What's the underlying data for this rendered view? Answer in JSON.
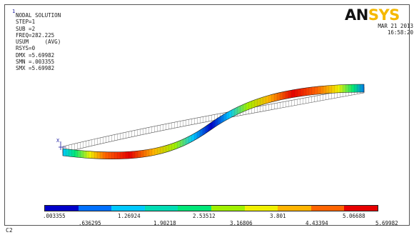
{
  "window": {
    "number": "1",
    "corner_label": "C2"
  },
  "logo": {
    "prefix": "AN",
    "suffix": "SYS"
  },
  "header": {
    "date": "MAR 21 2013",
    "time": "16:58:20"
  },
  "info_lines": [
    "NODAL SOLUTION",
    "STEP=1",
    "SUB =2",
    "FREQ=282.225",
    "USUM     (AVG)",
    "RSYS=0",
    "DMX =5.69982",
    "SMN =.003355",
    "SMX =5.69982"
  ],
  "axis_label": "X",
  "legend": {
    "colors": [
      "#0000c8",
      "#0070ff",
      "#00c8ff",
      "#00dcb4",
      "#00e678",
      "#a0f000",
      "#f0f000",
      "#ffb400",
      "#ff6400",
      "#e60000"
    ],
    "upper_ticks": [
      ".003355",
      "1.26924",
      "2.53512",
      "3.801",
      "5.06688"
    ],
    "lower_ticks": [
      ".636295",
      "1.90218",
      "3.16806",
      "4.43394",
      "5.69982"
    ]
  }
}
